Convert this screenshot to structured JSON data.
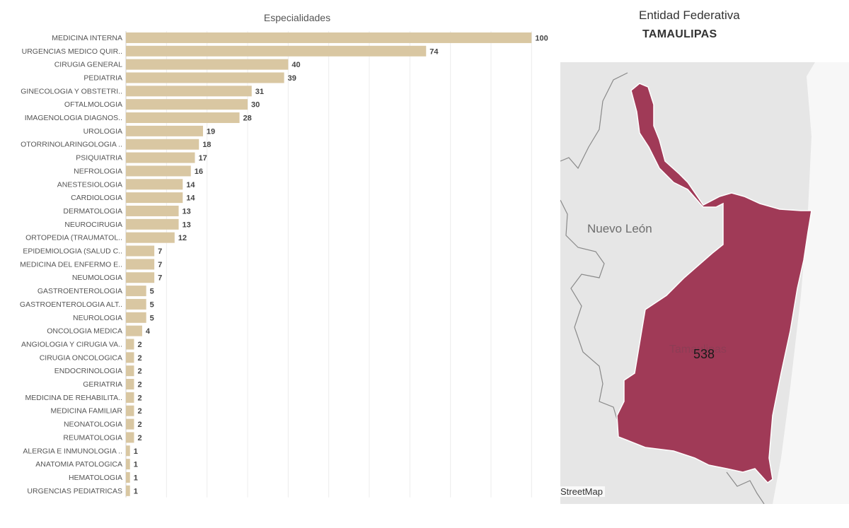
{
  "chart_data": {
    "type": "bar",
    "orientation": "horizontal",
    "title": "Especialidades",
    "xlabel": "",
    "ylabel": "",
    "xlim": [
      0,
      105
    ],
    "grid": true,
    "bar_color": "#D9C7A2",
    "categories": [
      "MEDICINA INTERNA",
      "URGENCIAS MEDICO QUIR..",
      "CIRUGIA GENERAL",
      "PEDIATRIA",
      "GINECOLOGIA Y OBSTETRI..",
      "OFTALMOLOGIA",
      "IMAGENOLOGIA DIAGNOS..",
      "UROLOGIA",
      "OTORRINOLARINGOLOGIA ..",
      "PSIQUIATRIA",
      "NEFROLOGIA",
      "ANESTESIOLOGIA",
      "CARDIOLOGIA",
      "DERMATOLOGIA",
      "NEUROCIRUGIA",
      "ORTOPEDIA (TRAUMATOL..",
      "EPIDEMIOLOGIA (SALUD C..",
      "MEDICINA DEL ENFERMO E..",
      "NEUMOLOGIA",
      "GASTROENTEROLOGIA",
      "GASTROENTEROLOGIA ALT..",
      "NEUROLOGIA",
      "ONCOLOGIA MEDICA",
      "ANGIOLOGIA Y CIRUGIA VA..",
      "CIRUGIA ONCOLOGICA",
      "ENDOCRINOLOGIA",
      "GERIATRIA",
      "MEDICINA DE REHABILITA..",
      "MEDICINA FAMILIAR",
      "NEONATOLOGIA",
      "REUMATOLOGIA",
      "ALERGIA E INMUNOLOGIA ..",
      "ANATOMIA PATOLOGICA",
      "HEMATOLOGIA",
      "URGENCIAS PEDIATRICAS"
    ],
    "values": [
      100,
      74,
      40,
      39,
      31,
      30,
      28,
      19,
      18,
      17,
      16,
      14,
      14,
      13,
      13,
      12,
      7,
      7,
      7,
      5,
      5,
      5,
      4,
      2,
      2,
      2,
      2,
      2,
      2,
      2,
      2,
      1,
      1,
      1,
      1
    ]
  },
  "map": {
    "header_label": "Entidad Federativa",
    "header_value": "TAMAULIPAS",
    "region_label_neighbor": "Nuevo León",
    "region_label_selected": "Tamaulipas",
    "region_value": "538",
    "attribution": "StreetMap",
    "region_color": "#A03A57",
    "land_color": "#E6E6E6"
  }
}
